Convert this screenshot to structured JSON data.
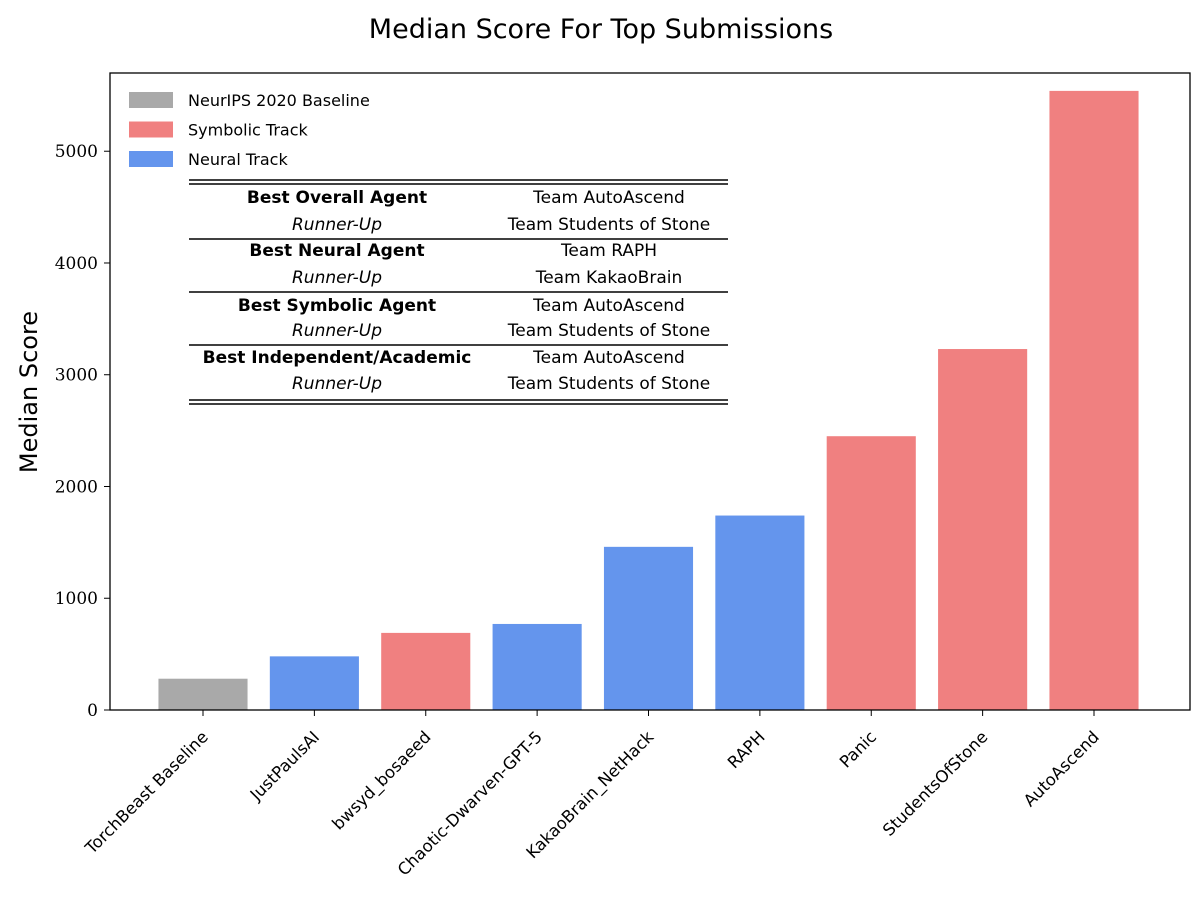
{
  "chart_data": {
    "type": "bar",
    "title": "Median Score For Top Submissions",
    "xlabel": "",
    "ylabel": "Median Score",
    "ylim": [
      0,
      5700
    ],
    "yticks": [
      0,
      1000,
      2000,
      3000,
      4000,
      5000
    ],
    "categories": [
      "TorchBeast Baseline",
      "JustPaulsAI",
      "bwsyd_bosaeed",
      "Chaotic-Dwarven-GPT-5",
      "KakaoBrain_NetHack",
      "RAPH",
      "Panic",
      "StudentsOfStone",
      "AutoAscend"
    ],
    "values": [
      280,
      480,
      690,
      770,
      1460,
      1740,
      2450,
      3230,
      5540
    ],
    "tracks": [
      "baseline",
      "neural",
      "symbolic",
      "neural",
      "neural",
      "neural",
      "symbolic",
      "symbolic",
      "symbolic"
    ],
    "colors": {
      "baseline": "#a9a9a9",
      "symbolic": "#f08080",
      "neural": "#6495ed"
    },
    "legend": [
      {
        "name": "NeurIPS 2020 Baseline",
        "track": "baseline"
      },
      {
        "name": "Symbolic Track",
        "track": "symbolic"
      },
      {
        "name": "Neural Track",
        "track": "neural"
      }
    ],
    "legend_position": "top-left",
    "grid": false,
    "table": [
      {
        "award": "Best  Overall Agent",
        "team": "Team AutoAscend",
        "style": "bold"
      },
      {
        "award": "Runner-Up",
        "team": "Team Students of Stone",
        "style": "italic"
      },
      {
        "award": "Best  Neural Agent",
        "team": "Team RAPH",
        "style": "bold"
      },
      {
        "award": "Runner-Up",
        "team": "Team KakaoBrain",
        "style": "italic"
      },
      {
        "award": "Best Symbolic Agent",
        "team": "Team AutoAscend",
        "style": "bold"
      },
      {
        "award": "Runner-Up",
        "team": "Team Students of Stone",
        "style": "italic"
      },
      {
        "award": "Best Independent/Academic",
        "team": "Team AutoAscend",
        "style": "bold"
      },
      {
        "award": "Runner-Up",
        "team": "Team Students of Stone",
        "style": "italic"
      }
    ]
  }
}
